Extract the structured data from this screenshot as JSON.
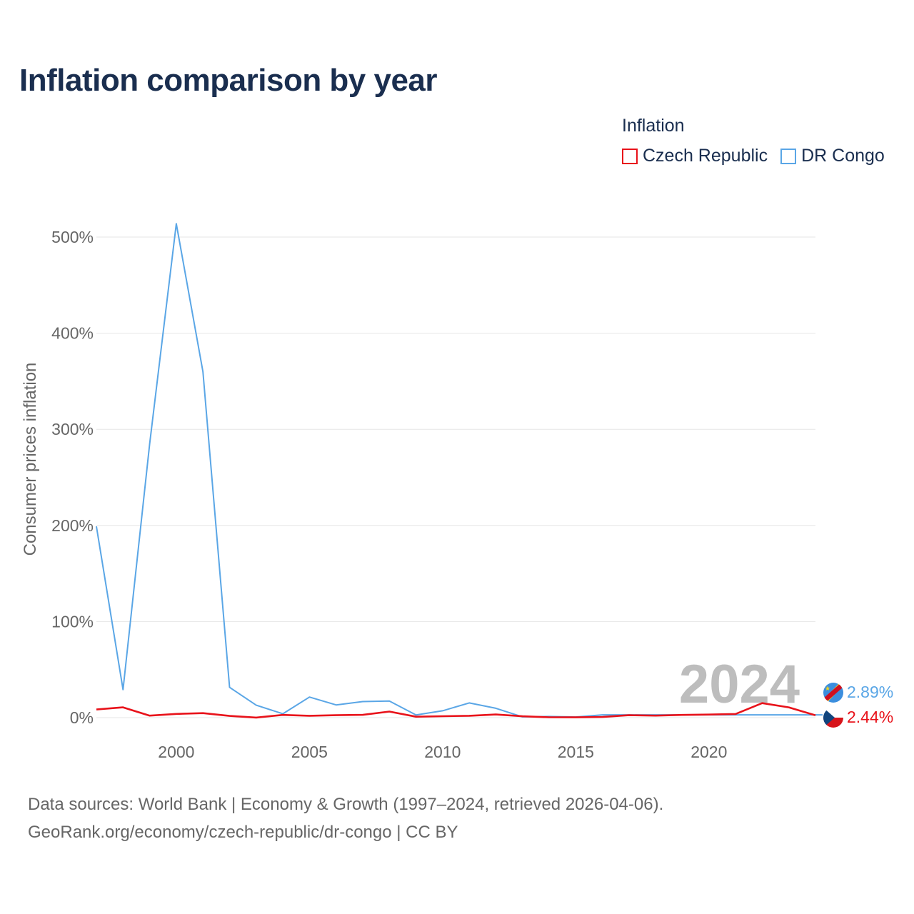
{
  "title": "Inflation comparison by year",
  "legend": {
    "title": "Inflation",
    "items": [
      {
        "label": "Czech Republic",
        "color": "#e8121a"
      },
      {
        "label": "DR Congo",
        "color": "#5aa6e6"
      }
    ]
  },
  "watermark_year": "2024",
  "end_labels": {
    "dr_congo": "2.89%",
    "czech": "2.44%"
  },
  "footer": {
    "line1": "Data sources: World Bank | Economy & Growth (1997–2024, retrieved 2026-04-06).",
    "line2": "GeoRank.org/economy/czech-republic/dr-congo | CC BY"
  },
  "chart_data": {
    "type": "line",
    "title": "Inflation comparison by year",
    "xlabel": "",
    "ylabel": "Consumer prices inflation",
    "x": [
      1997,
      1998,
      1999,
      2000,
      2001,
      2002,
      2003,
      2004,
      2005,
      2006,
      2007,
      2008,
      2009,
      2010,
      2011,
      2012,
      2013,
      2014,
      2015,
      2016,
      2017,
      2018,
      2019,
      2020,
      2021,
      2022,
      2023,
      2024
    ],
    "xlim": [
      1997,
      2024
    ],
    "ylim": [
      -10,
      520
    ],
    "xticks": [
      2000,
      2005,
      2010,
      2015,
      2020
    ],
    "yticks": [
      0,
      100,
      200,
      300,
      400,
      500
    ],
    "ytick_labels": [
      "0%",
      "100%",
      "200%",
      "300%",
      "400%",
      "500%"
    ],
    "grid": true,
    "legend_position": "top-right",
    "series": [
      {
        "name": "DR Congo",
        "color": "#5aa6e6",
        "values": [
          199,
          29.1,
          284.9,
          513.9,
          359.9,
          31.5,
          12.9,
          4.0,
          21.4,
          13.2,
          16.7,
          17.3,
          2.8,
          7.1,
          15.3,
          9.7,
          0.8,
          1.2,
          0.7,
          2.89,
          2.89,
          2.89,
          2.89,
          2.89,
          2.89,
          2.89,
          2.89,
          2.89
        ]
      },
      {
        "name": "Czech Republic",
        "color": "#e8121a",
        "values": [
          8.5,
          10.7,
          2.1,
          3.9,
          4.7,
          1.8,
          0.1,
          2.8,
          1.9,
          2.5,
          2.9,
          6.3,
          1.0,
          1.5,
          1.9,
          3.3,
          1.4,
          0.4,
          0.3,
          0.7,
          2.5,
          2.1,
          2.8,
          3.2,
          3.8,
          15.1,
          10.7,
          2.44
        ]
      }
    ]
  }
}
